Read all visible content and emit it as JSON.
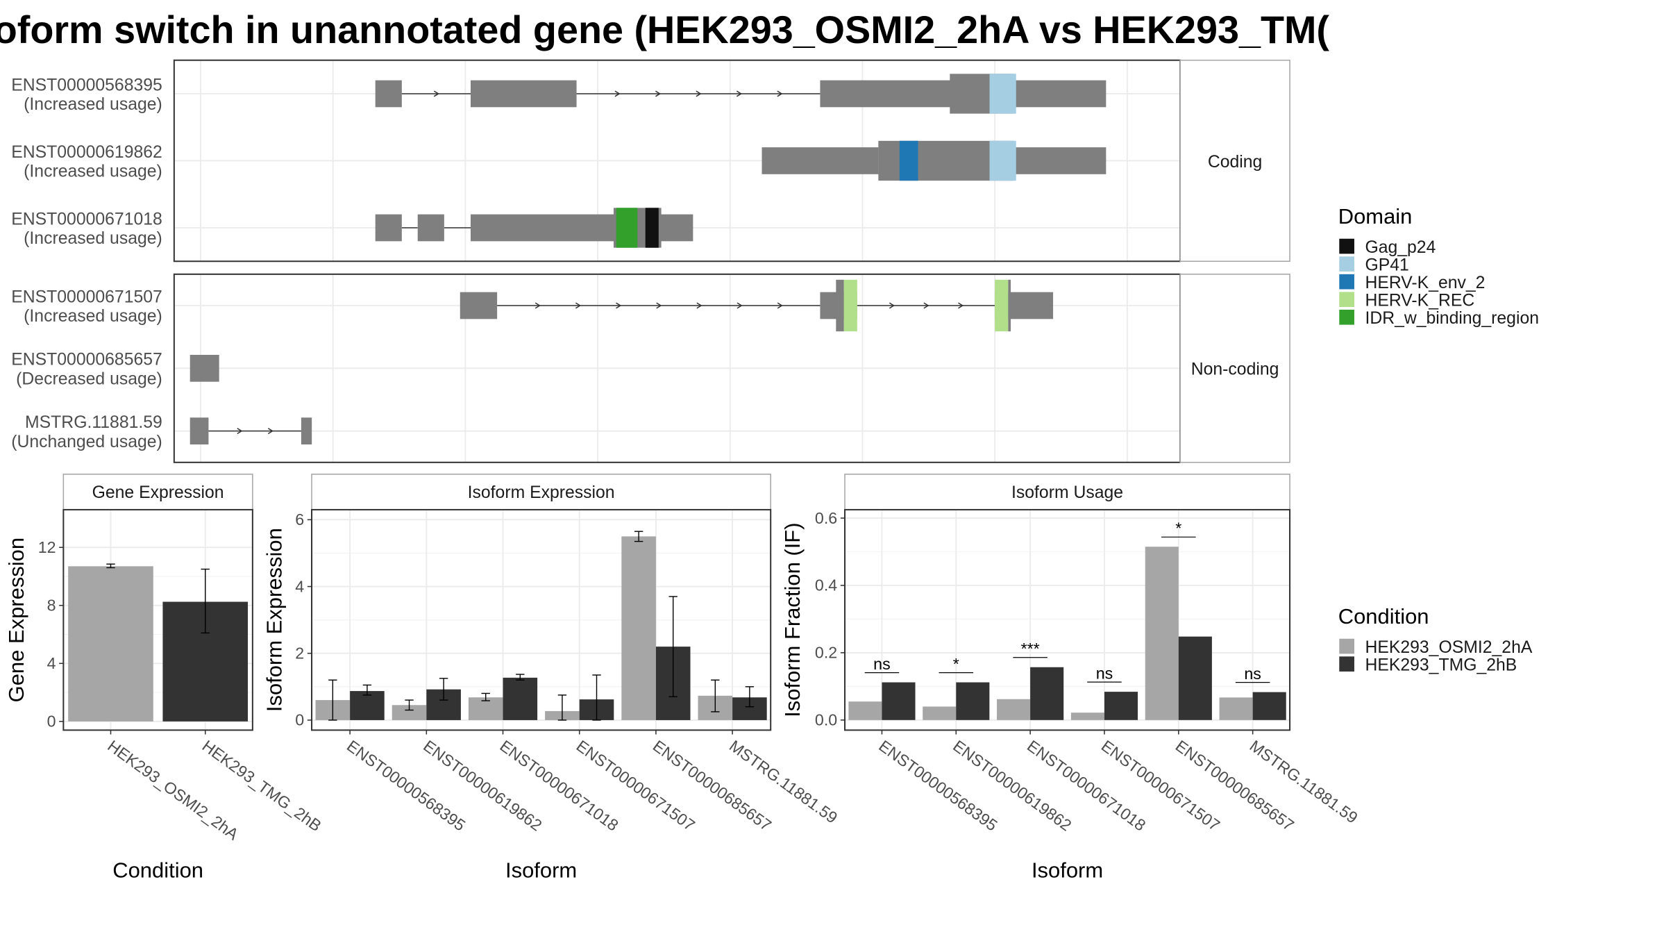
{
  "title": "oform switch in unannotated gene (HEK293_OSMI2_2hA vs HEK293_TM(",
  "colors": {
    "exon": "#7f7f7f",
    "condition_a": "#a6a6a6",
    "condition_b": "#333333",
    "grid": "#ebebeb",
    "panel_border": "#333333",
    "strip_border": "#a6a6a6"
  },
  "chart_data": [
    {
      "type": "gene-structure",
      "facets": [
        {
          "label": "Coding",
          "isoforms": [
            {
              "id": "ENST00000568395",
              "usage": "(Increased usage)",
              "exons": [
                [
                  2.83,
                  2.88
                ],
                [
                  3.01,
                  3.21
                ],
                [
                  3.67,
                  3.94
                ],
                [
                  4.03,
                  4.21
                ]
              ],
              "domains": [
                {
                  "name": "GP41",
                  "range": [
                    3.99,
                    4.04
                  ]
                }
              ]
            },
            {
              "id": "ENST00000619862",
              "usage": "(Increased usage)",
              "exons": [
                [
                  3.56,
                  3.78
                ],
                [
                  3.78,
                  4.21
                ]
              ],
              "domains": [
                {
                  "name": "HERV-K_env_2",
                  "range": [
                    3.82,
                    3.855
                  ]
                },
                {
                  "name": "GP41",
                  "range": [
                    3.99,
                    4.04
                  ]
                }
              ]
            },
            {
              "id": "ENST00000671018",
              "usage": "(Increased usage)",
              "exons": [
                [
                  2.83,
                  2.88
                ],
                [
                  2.91,
                  2.96
                ],
                [
                  3.01,
                  3.29
                ],
                [
                  3.28,
                  3.43
                ]
              ],
              "domains": [
                {
                  "name": "IDR_w_binding_region",
                  "range": [
                    3.285,
                    3.325
                  ]
                },
                {
                  "name": "Gag_p24",
                  "range": [
                    3.34,
                    3.365
                  ]
                }
              ]
            }
          ]
        },
        {
          "label": "Non-coding",
          "isoforms": [
            {
              "id": "ENST00000671507",
              "usage": "(Increased usage)",
              "exons": [
                [
                  2.99,
                  3.06
                ],
                [
                  3.67,
                  3.74
                ],
                [
                  4.0,
                  4.11
                ]
              ],
              "domains": [
                {
                  "name": "HERV-K_REC",
                  "range": [
                    3.715,
                    3.74
                  ]
                },
                {
                  "name": "HERV-K_REC",
                  "range": [
                    4.0,
                    4.025
                  ]
                }
              ]
            },
            {
              "id": "ENST00000685657",
              "usage": "(Decreased usage)",
              "exons": [
                [
                  2.48,
                  2.535
                ]
              ],
              "domains": []
            },
            {
              "id": "MSTRG.11881.59",
              "usage": "(Unchanged usage)",
              "exons": [
                [
                  2.48,
                  2.515
                ],
                [
                  2.69,
                  2.71
                ]
              ],
              "domains": []
            }
          ]
        }
      ],
      "legend": {
        "title": "Domain",
        "position": "right",
        "entries": [
          {
            "name": "Gag_p24",
            "color": "#111111"
          },
          {
            "name": "GP41",
            "color": "#a6cee3"
          },
          {
            "name": "HERV-K_env_2",
            "color": "#1f78b4"
          },
          {
            "name": "HERV-K_REC",
            "color": "#b2df8a"
          },
          {
            "name": "IDR_w_binding_region",
            "color": "#33a02c"
          }
        ]
      }
    },
    {
      "type": "bar",
      "strip": "Gene Expression",
      "xlabel": "Condition",
      "ylabel": "Gene Expression",
      "categories": [
        "HEK293_OSMI2_2hA",
        "HEK293_TMG_2hB"
      ],
      "values": [
        10.7,
        8.25
      ],
      "errors": [
        [
          10.6,
          10.85
        ],
        [
          6.1,
          10.5
        ]
      ],
      "yticks": [
        "0",
        "4",
        "8",
        "12"
      ],
      "ylim": [
        -0.6,
        14.6
      ]
    },
    {
      "type": "bar",
      "strip": "Isoform Expression",
      "xlabel": "Isoform",
      "ylabel": "Isoform Expression",
      "categories": [
        "ENST00000568395",
        "ENST00000619862",
        "ENST00000671018",
        "ENST00000671507",
        "ENST00000685657",
        "MSTRG.11881.59"
      ],
      "series": [
        {
          "name": "HEK293_OSMI2_2hA",
          "values": [
            0.6,
            0.45,
            0.68,
            0.27,
            5.5,
            0.73
          ],
          "errors": [
            [
              0.0,
              1.2
            ],
            [
              0.3,
              0.6
            ],
            [
              0.58,
              0.8
            ],
            [
              0.0,
              0.75
            ],
            [
              5.35,
              5.65
            ],
            [
              0.25,
              1.2
            ]
          ]
        },
        {
          "name": "HEK293_TMG_2hB",
          "values": [
            0.87,
            0.92,
            1.27,
            0.62,
            2.2,
            0.68
          ],
          "errors": [
            [
              0.75,
              1.05
            ],
            [
              0.6,
              1.25
            ],
            [
              1.2,
              1.37
            ],
            [
              0.0,
              1.35
            ],
            [
              0.7,
              3.7
            ],
            [
              0.4,
              1.0
            ]
          ]
        }
      ],
      "yticks": [
        "0",
        "2",
        "4",
        "6"
      ],
      "ylim": [
        -0.3,
        6.3
      ]
    },
    {
      "type": "bar",
      "strip": "Isoform Usage",
      "xlabel": "Isoform",
      "ylabel": "Isoform Fraction (IF)",
      "categories": [
        "ENST00000568395",
        "ENST00000619862",
        "ENST00000671018",
        "ENST00000671507",
        "ENST00000685657",
        "MSTRG.11881.59"
      ],
      "series": [
        {
          "name": "HEK293_OSMI2_2hA",
          "values": [
            0.055,
            0.04,
            0.062,
            0.022,
            0.515,
            0.067
          ]
        },
        {
          "name": "HEK293_TMG_2hB",
          "values": [
            0.112,
            0.112,
            0.157,
            0.084,
            0.248,
            0.083
          ]
        }
      ],
      "significance": [
        "ns",
        "*",
        "***",
        "ns",
        "*",
        "ns"
      ],
      "yticks": [
        "0.0",
        "0.2",
        "0.4",
        "0.6"
      ],
      "ylim": [
        -0.03,
        0.625
      ]
    }
  ],
  "condition_legend": {
    "title": "Condition",
    "entries": [
      "HEK293_OSMI2_2hA",
      "HEK293_TMG_2hB"
    ]
  }
}
